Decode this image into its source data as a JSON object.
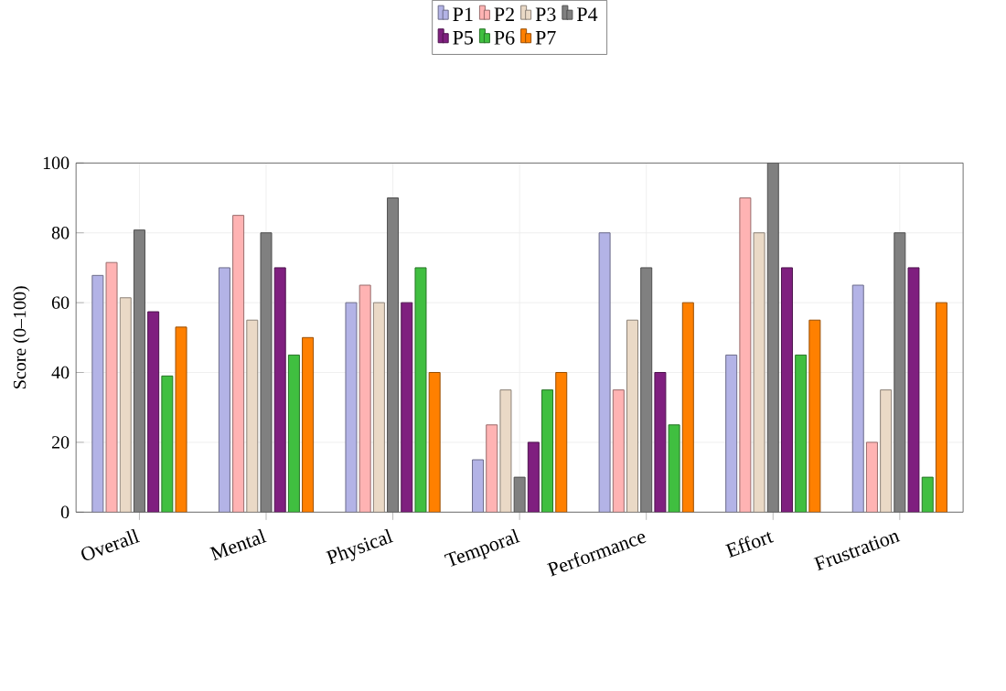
{
  "chart_data": {
    "type": "bar",
    "ylabel": "Score (0–100)",
    "categories": [
      "Overall",
      "Mental",
      "Physical",
      "Temporal",
      "Performance",
      "Effort",
      "Frustration"
    ],
    "series": [
      {
        "name": "P1",
        "color": "#b3b3e6",
        "values": [
          67.8,
          70,
          60,
          15,
          80,
          45,
          65
        ]
      },
      {
        "name": "P2",
        "color": "#ffb3b3",
        "values": [
          71.5,
          85,
          65,
          25,
          35,
          90,
          20
        ]
      },
      {
        "name": "P3",
        "color": "#ead9c6",
        "values": [
          61.4,
          55,
          60,
          35,
          55,
          80,
          35
        ]
      },
      {
        "name": "P4",
        "color": "#808080",
        "values": [
          80.8,
          80,
          90,
          10,
          70,
          100,
          80
        ]
      },
      {
        "name": "P5",
        "color": "#7f1f7f",
        "values": [
          57.4,
          70,
          60,
          20,
          40,
          70,
          70
        ]
      },
      {
        "name": "P6",
        "color": "#40bf40",
        "values": [
          39,
          45,
          70,
          35,
          25,
          45,
          10
        ]
      },
      {
        "name": "P7",
        "color": "#ff8000",
        "values": [
          53,
          50,
          40,
          40,
          60,
          55,
          60
        ]
      }
    ],
    "ylim": [
      0,
      100
    ],
    "yticks": [
      0,
      20,
      40,
      60,
      80,
      100
    ],
    "grid": true,
    "legend": "top"
  }
}
